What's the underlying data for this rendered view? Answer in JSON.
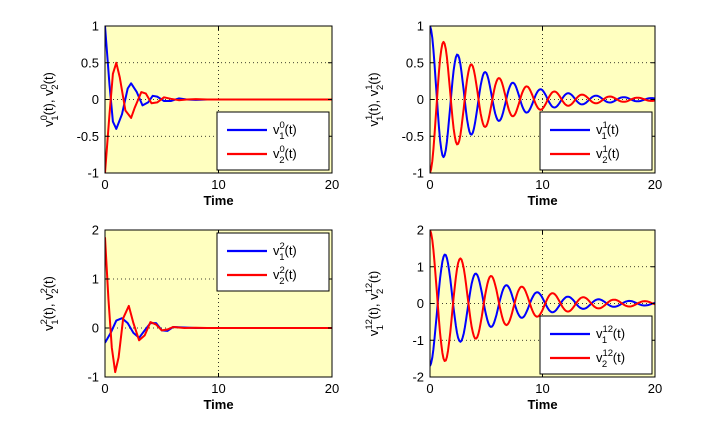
{
  "chart_data": [
    {
      "type": "line",
      "id": "v0",
      "xlabel": "Time",
      "ylabel": {
        "a_base": "v",
        "a_sup": "0",
        "a_sub": "1",
        "b_base": "v",
        "b_sup": "0",
        "b_sub": "2",
        "suffix": "(t)",
        "sep": ", "
      },
      "xlim": [
        0,
        20
      ],
      "ylim": [
        -1,
        1
      ],
      "xticks": [
        {
          "v": 0,
          "label": "0"
        },
        {
          "v": 10,
          "label": "10"
        },
        {
          "v": 20,
          "label": "20"
        }
      ],
      "yticks": [
        {
          "v": 1,
          "label": "1"
        },
        {
          "v": 0.5,
          "label": "0.5"
        },
        {
          "v": 0,
          "label": "0"
        },
        {
          "v": -0.5,
          "label": "-0.5"
        },
        {
          "v": -1,
          "label": "-1"
        }
      ],
      "legend_position": "bottom-right",
      "grid": "dotted",
      "series": [
        {
          "name": "v_1^0(t)",
          "base": "v",
          "sub": "1",
          "sup": "0",
          "suffix": "(t)",
          "color": "#0000ff",
          "x": [
            0,
            0.4,
            0.7,
            1.0,
            1.5,
            2.0,
            2.3,
            2.8,
            3.3,
            3.8,
            4.2,
            4.6,
            5.2,
            5.8,
            6.5,
            7.2,
            8.0,
            9.0,
            10.0,
            20.0
          ],
          "y": [
            1.0,
            0.2,
            -0.3,
            -0.4,
            -0.2,
            0.15,
            0.22,
            0.1,
            -0.08,
            -0.04,
            0.05,
            0.04,
            -0.02,
            -0.02,
            0.015,
            0.0,
            -0.005,
            0.0,
            0.0,
            0.0
          ]
        },
        {
          "name": "v_2^0(t)",
          "base": "v",
          "sub": "2",
          "sup": "0",
          "suffix": "(t)",
          "color": "#ff0000",
          "x": [
            0,
            0.4,
            0.7,
            1.0,
            1.3,
            1.8,
            2.3,
            2.6,
            3.2,
            3.6,
            4.1,
            4.6,
            5.2,
            5.8,
            6.5,
            7.2,
            8.0,
            9.0,
            10.0,
            20.0
          ],
          "y": [
            -1.0,
            -0.2,
            0.35,
            0.5,
            0.3,
            -0.15,
            -0.25,
            -0.12,
            0.1,
            0.08,
            -0.05,
            -0.04,
            0.03,
            0.01,
            -0.01,
            0.0,
            0.005,
            0.0,
            0.0,
            0.0
          ]
        }
      ]
    },
    {
      "type": "line",
      "id": "v1",
      "xlabel": "Time",
      "ylabel": {
        "a_base": "v",
        "a_sup": "1",
        "a_sub": "1",
        "b_base": "v",
        "b_sup": "1",
        "b_sub": "2",
        "suffix": "(t)",
        "sep": ", "
      },
      "xlim": [
        0,
        20
      ],
      "ylim": [
        -1,
        1
      ],
      "xticks": [
        {
          "v": 0,
          "label": "0"
        },
        {
          "v": 10,
          "label": "10"
        },
        {
          "v": 20,
          "label": "20"
        }
      ],
      "yticks": [
        {
          "v": 1,
          "label": "1"
        },
        {
          "v": 0.5,
          "label": "0.5"
        },
        {
          "v": 0,
          "label": "0"
        },
        {
          "v": -0.5,
          "label": "-0.5"
        },
        {
          "v": -1,
          "label": "-1"
        }
      ],
      "legend_position": "bottom-right",
      "grid": "dotted",
      "series": [
        {
          "name": "v_1^1(t)",
          "base": "v",
          "sub": "1",
          "sup": "1",
          "suffix": "(t)",
          "color": "#0000ff",
          "damped": {
            "x0": 0,
            "x1": 20,
            "step": 0.1,
            "A": 1.0,
            "k": 0.2,
            "w": 2.55,
            "phase": 0.0
          }
        },
        {
          "name": "v_2^1(t)",
          "base": "v",
          "sub": "2",
          "sup": "1",
          "suffix": "(t)",
          "color": "#ff0000",
          "damped": {
            "x0": 0,
            "x1": 20,
            "step": 0.1,
            "A": -1.0,
            "k": 0.2,
            "w": 2.55,
            "phase": 0.0
          }
        }
      ]
    },
    {
      "type": "line",
      "id": "v2",
      "xlabel": "Time",
      "ylabel": {
        "a_base": "v",
        "a_sup": "2",
        "a_sub": "1",
        "b_base": "v",
        "b_sup": "2",
        "b_sub": "2",
        "suffix": "(t)",
        "sep": ", "
      },
      "xlim": [
        0,
        20
      ],
      "ylim": [
        -1,
        2
      ],
      "xticks": [
        {
          "v": 0,
          "label": "0"
        },
        {
          "v": 10,
          "label": "10"
        },
        {
          "v": 20,
          "label": "20"
        }
      ],
      "yticks": [
        {
          "v": 2,
          "label": "2"
        },
        {
          "v": 1,
          "label": "1"
        },
        {
          "v": 0,
          "label": "0"
        },
        {
          "v": -1,
          "label": "-1"
        }
      ],
      "legend_position": "top-right",
      "grid": "dotted",
      "series": [
        {
          "name": "v_1^2(t)",
          "base": "v",
          "sub": "1",
          "sup": "2",
          "suffix": "(t)",
          "color": "#0000ff",
          "x": [
            0,
            0.5,
            1.0,
            1.5,
            2.0,
            2.5,
            3.0,
            3.5,
            4.0,
            4.5,
            5.0,
            5.5,
            6.0,
            7.0,
            8.0,
            9.0,
            10.0,
            20.0
          ],
          "y": [
            -0.3,
            -0.1,
            0.15,
            0.2,
            0.1,
            -0.1,
            -0.2,
            -0.05,
            0.1,
            0.1,
            -0.05,
            -0.06,
            0.02,
            0.01,
            0.0,
            0.0,
            0.0,
            0.0
          ]
        },
        {
          "name": "v_2^2(t)",
          "base": "v",
          "sub": "2",
          "sup": "2",
          "suffix": "(t)",
          "color": "#ff0000",
          "x": [
            0,
            0.3,
            0.6,
            0.9,
            1.2,
            1.6,
            2.1,
            2.5,
            3.0,
            3.5,
            4.0,
            4.5,
            5.0,
            5.5,
            6.0,
            7.0,
            8.0,
            9.0,
            10.0,
            20.0
          ],
          "y": [
            1.85,
            0.6,
            -0.4,
            -0.9,
            -0.6,
            0.2,
            0.45,
            0.1,
            -0.25,
            -0.15,
            0.12,
            0.07,
            -0.05,
            -0.03,
            0.02,
            0.0,
            0.005,
            0.0,
            0.0,
            0.0
          ]
        }
      ]
    },
    {
      "type": "line",
      "id": "v12",
      "xlabel": "Time",
      "ylabel": {
        "a_base": "v",
        "a_sup": "12",
        "a_sub": "1",
        "b_base": "v",
        "b_sup": "12",
        "b_sub": "2",
        "suffix": "(t)",
        "sep": ", "
      },
      "xlim": [
        0,
        20
      ],
      "ylim": [
        -2,
        2
      ],
      "xticks": [
        {
          "v": 0,
          "label": "0"
        },
        {
          "v": 10,
          "label": "10"
        },
        {
          "v": 20,
          "label": "20"
        }
      ],
      "yticks": [
        {
          "v": 2,
          "label": "2"
        },
        {
          "v": 1,
          "label": "1"
        },
        {
          "v": 0,
          "label": "0"
        },
        {
          "v": -1,
          "label": "-1"
        },
        {
          "v": -2,
          "label": "-2"
        }
      ],
      "legend_position": "bottom-right",
      "grid": "dotted",
      "series": [
        {
          "name": "v_1^12(t)",
          "base": "v",
          "sub": "1",
          "sup": "12",
          "suffix": "(t)",
          "color": "#0000ff",
          "damped": {
            "x0": 0,
            "x1": 20,
            "step": 0.1,
            "A": -1.7,
            "k": 0.18,
            "w": 2.3,
            "phase": 0.0
          }
        },
        {
          "name": "v_2^12(t)",
          "base": "v",
          "sub": "2",
          "sup": "12",
          "suffix": "(t)",
          "color": "#ff0000",
          "damped": {
            "x0": 0,
            "x1": 20,
            "step": 0.1,
            "A": 2.0,
            "k": 0.18,
            "w": 2.3,
            "phase": 0.0
          }
        }
      ]
    }
  ]
}
